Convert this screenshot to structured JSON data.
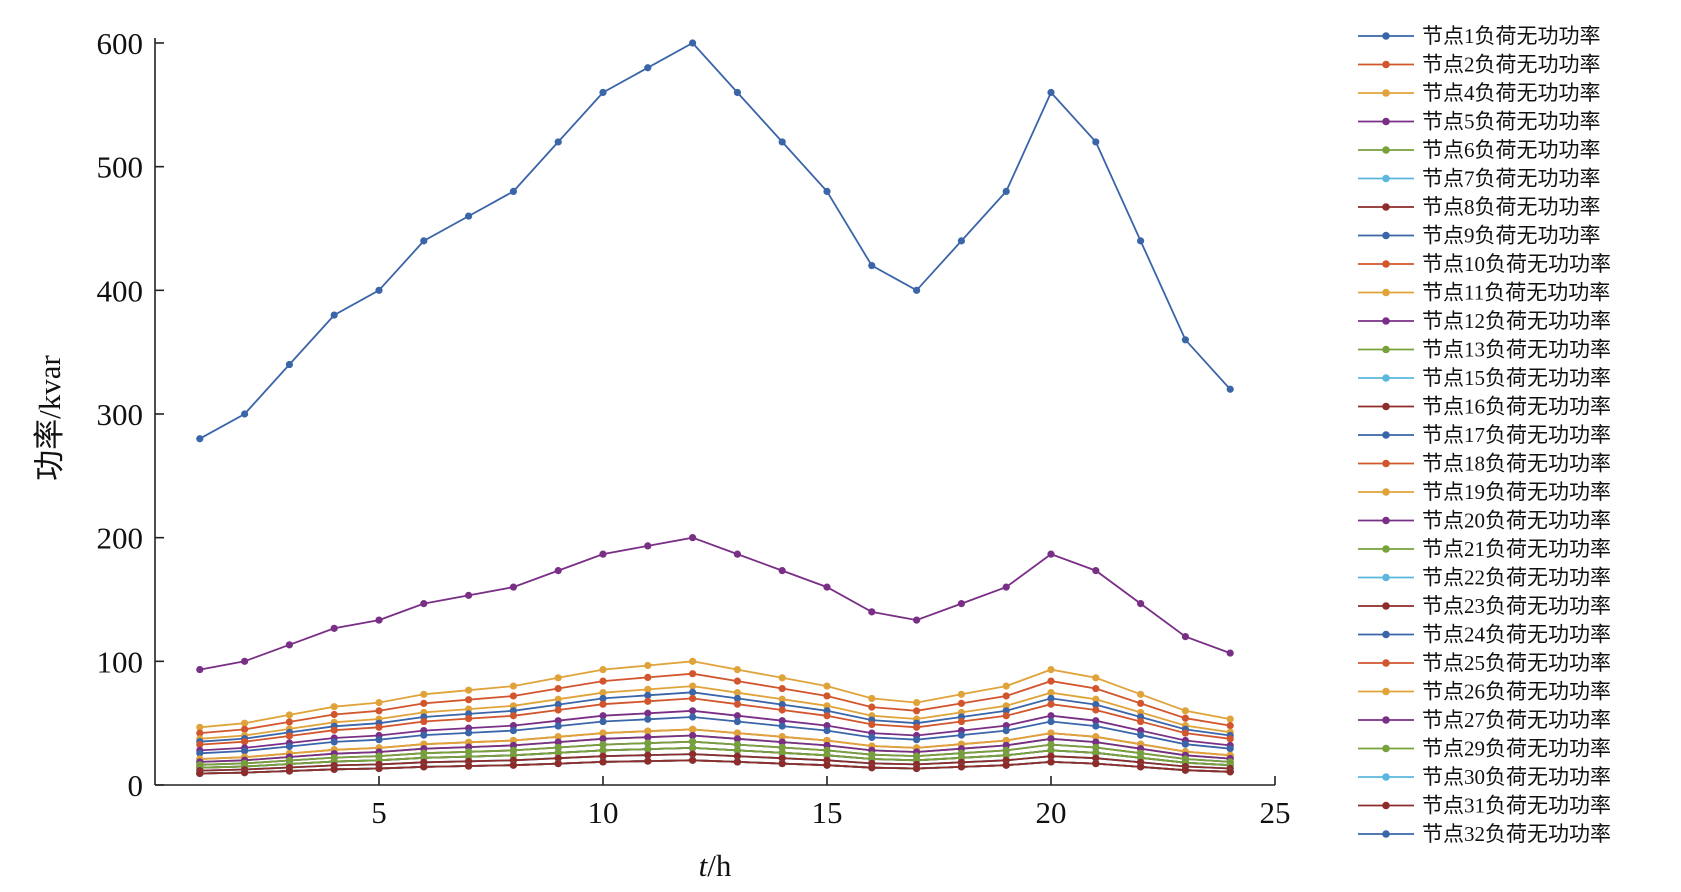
{
  "chart_data": {
    "type": "line",
    "xlabel_italic": "t",
    "xlabel_rest": "/h",
    "ylabel": "功率/kvar",
    "xlim": [
      0,
      25
    ],
    "ylim": [
      0,
      600
    ],
    "xticks": [
      5,
      10,
      15,
      20,
      25
    ],
    "yticks": [
      0,
      100,
      200,
      300,
      400,
      500,
      600
    ],
    "grid": false,
    "legend_position": "right",
    "x": [
      1,
      2,
      3,
      4,
      5,
      6,
      7,
      8,
      9,
      10,
      11,
      12,
      13,
      14,
      15,
      16,
      17,
      18,
      19,
      20,
      21,
      22,
      23,
      24
    ],
    "profile": [
      1.4,
      1.5,
      1.7,
      1.9,
      2.0,
      2.2,
      2.3,
      2.4,
      2.6,
      2.8,
      2.9,
      3.0,
      2.8,
      2.6,
      2.4,
      2.1,
      2.0,
      2.2,
      2.4,
      2.8,
      2.6,
      2.2,
      1.8,
      1.6
    ],
    "series": [
      {
        "name": "节点1负荷无功功率",
        "color": "#3a65a8",
        "scale": 200
      },
      {
        "name": "节点2负荷无功功率",
        "color": "#d2562d",
        "scale": 30
      },
      {
        "name": "节点4负荷无功功率",
        "color": "#e0a33a",
        "scale": 26.67
      },
      {
        "name": "节点5负荷无功功率",
        "color": "#7a2f86",
        "scale": 20
      },
      {
        "name": "节点6负荷无功功率",
        "color": "#77a13b",
        "scale": 6.67
      },
      {
        "name": "节点7负荷无功功率",
        "color": "#5bb7de",
        "scale": 6.67
      },
      {
        "name": "节点8负荷无功功率",
        "color": "#8e2c2a",
        "scale": 6.67
      },
      {
        "name": "节点9负荷无功功率",
        "color": "#3a65a8",
        "scale": 6.67
      },
      {
        "name": "节点10负荷无功功率",
        "color": "#d2562d",
        "scale": 6.67
      },
      {
        "name": "节点11负荷无功功率",
        "color": "#e0a33a",
        "scale": 10
      },
      {
        "name": "节点12负荷无功功率",
        "color": "#7a2f86",
        "scale": 11.67
      },
      {
        "name": "节点13负荷无功功率",
        "color": "#77a13b",
        "scale": 11.67
      },
      {
        "name": "节点15负荷无功功率",
        "color": "#5bb7de",
        "scale": 6.67
      },
      {
        "name": "节点16负荷无功功率",
        "color": "#8e2c2a",
        "scale": 10
      },
      {
        "name": "节点17负荷无功功率",
        "color": "#3a65a8",
        "scale": 10
      },
      {
        "name": "节点18负荷无功功率",
        "color": "#d2562d",
        "scale": 15
      },
      {
        "name": "节点19负荷无功功率",
        "color": "#e0a33a",
        "scale": 15
      },
      {
        "name": "节点20负荷无功功率",
        "color": "#7a2f86",
        "scale": 66.67
      },
      {
        "name": "节点21负荷无功功率",
        "color": "#77a13b",
        "scale": 13.33
      },
      {
        "name": "节点22负荷无功功率",
        "color": "#5bb7de",
        "scale": 8.33
      },
      {
        "name": "节点23负荷无功功率",
        "color": "#8e2c2a",
        "scale": 6.67
      },
      {
        "name": "节点24负荷无功功率",
        "color": "#3a65a8",
        "scale": 25
      },
      {
        "name": "节点25负荷无功功率",
        "color": "#d2562d",
        "scale": 23.33
      },
      {
        "name": "节点26负荷无功功率",
        "color": "#e0a33a",
        "scale": 33.33
      },
      {
        "name": "节点27负荷无功功率",
        "color": "#7a2f86",
        "scale": 13.33
      },
      {
        "name": "节点29负荷无功功率",
        "color": "#77a13b",
        "scale": 10
      },
      {
        "name": "节点30负荷无功功率",
        "color": "#5bb7de",
        "scale": 8.33
      },
      {
        "name": "节点31负荷无功功率",
        "color": "#8e2c2a",
        "scale": 8.33
      },
      {
        "name": "节点32负荷无功功率",
        "color": "#3a65a8",
        "scale": 18.33
      }
    ]
  }
}
